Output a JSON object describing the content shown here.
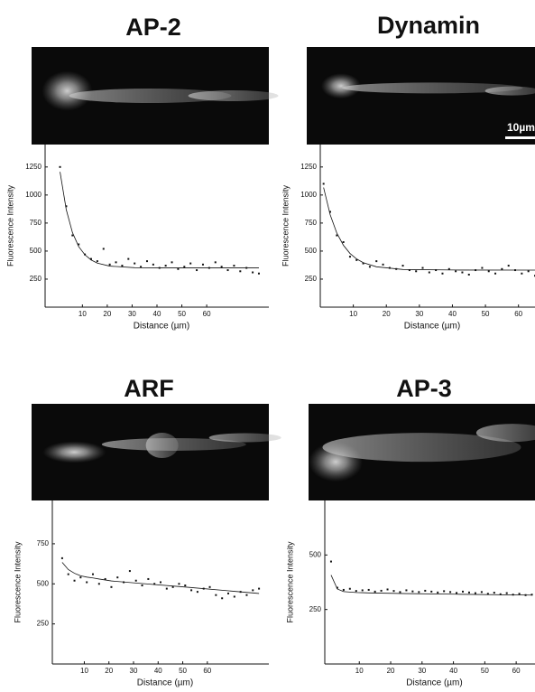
{
  "chart_data": [
    {
      "type": "scatter",
      "title": "AP-2",
      "xlabel": "Distance (µm)",
      "ylabel": "Fluorescence Intensity",
      "xlim": [
        -5,
        85
      ],
      "ylim": [
        0,
        1450
      ],
      "xticks": [
        10,
        20,
        30,
        40,
        50,
        60
      ],
      "yticks": [
        250,
        500,
        750,
        1000,
        1250
      ],
      "color": "#111111",
      "x": [
        1,
        3.5,
        6,
        8.5,
        11,
        13.5,
        16,
        18.5,
        21,
        23.5,
        26,
        28.5,
        31,
        33.5,
        36,
        38.5,
        41,
        43.5,
        46,
        48.5,
        51,
        53.5,
        56,
        58.5,
        61,
        63.5,
        66,
        68.5,
        71,
        73.5,
        76,
        78.5,
        81
      ],
      "values": [
        1250,
        900,
        640,
        560,
        470,
        430,
        410,
        520,
        380,
        400,
        370,
        430,
        390,
        360,
        410,
        380,
        350,
        370,
        400,
        340,
        360,
        390,
        330,
        380,
        350,
        400,
        360,
        330,
        370,
        320,
        350,
        310,
        300
      ],
      "fit": {
        "x": [
          1,
          3.5,
          6,
          8.5,
          11,
          13.5,
          16,
          21,
          31,
          51,
          81
        ],
        "values": [
          1207,
          870,
          665,
          540,
          467,
          421,
          393,
          366,
          352,
          350,
          350
        ]
      }
    },
    {
      "type": "scatter",
      "title": "Dynamin",
      "xlabel": "Distance (µm)",
      "ylabel": "Fluorescence Intensity",
      "scale_bar_label": "10µm",
      "xlim": [
        0,
        65
      ],
      "ylim": [
        0,
        1450
      ],
      "xticks": [
        10,
        20,
        30,
        40,
        50,
        60
      ],
      "yticks": [
        250,
        500,
        750,
        1000,
        1250
      ],
      "color": "#111111",
      "x": [
        1,
        3,
        5,
        7,
        9,
        11,
        13,
        15,
        17,
        19,
        21,
        23,
        25,
        27,
        29,
        31,
        33,
        35,
        37,
        39,
        41,
        43,
        45,
        47,
        49,
        51,
        53,
        55,
        57,
        59,
        61,
        63,
        65
      ],
      "values": [
        1100,
        850,
        640,
        580,
        450,
        420,
        390,
        360,
        410,
        380,
        350,
        340,
        370,
        330,
        320,
        350,
        310,
        330,
        300,
        340,
        320,
        310,
        290,
        330,
        350,
        320,
        300,
        340,
        370,
        330,
        300,
        320,
        280
      ],
      "fit": {
        "x": [
          1,
          3,
          5,
          7,
          9,
          11,
          13,
          17,
          25,
          41,
          65
        ],
        "values": [
          1067,
          824,
          661,
          552,
          479,
          430,
          397,
          360,
          336,
          331,
          330
        ]
      }
    },
    {
      "type": "scatter",
      "title": "ARF",
      "xlabel": "Distance (µm)",
      "ylabel": "Fluorescence Intensity",
      "xlim": [
        -3,
        85
      ],
      "ylim": [
        0,
        1020
      ],
      "xticks": [
        10,
        20,
        30,
        40,
        50,
        60
      ],
      "yticks": [
        250,
        500,
        750
      ],
      "color": "#111111",
      "x": [
        1,
        3.5,
        6,
        8.5,
        11,
        13.5,
        16,
        18.5,
        21,
        23.5,
        26,
        28.5,
        31,
        33.5,
        36,
        38.5,
        41,
        43.5,
        46,
        48.5,
        51,
        53.5,
        56,
        58.5,
        61,
        63.5,
        66,
        68.5,
        71,
        73.5,
        76,
        78.5,
        81
      ],
      "values": [
        660,
        560,
        520,
        540,
        510,
        560,
        500,
        530,
        480,
        540,
        510,
        580,
        520,
        490,
        530,
        500,
        510,
        470,
        480,
        500,
        490,
        460,
        450,
        470,
        480,
        430,
        410,
        440,
        420,
        450,
        430,
        460,
        470
      ],
      "fit": {
        "x": [
          1,
          3.5,
          6,
          8.5,
          11,
          13.5,
          16,
          21,
          31,
          51,
          81
        ],
        "values": [
          634,
          589,
          566,
          550,
          542,
          537,
          530,
          518,
          505,
          480,
          440
        ]
      }
    },
    {
      "type": "scatter",
      "title": "AP-3",
      "xlabel": "Distance (µm)",
      "ylabel": "Fluorescence Intensity",
      "xlim": [
        -1,
        66
      ],
      "ylim": [
        0,
        750
      ],
      "xticks": [
        10,
        20,
        30,
        40,
        50,
        60
      ],
      "yticks": [
        250,
        500
      ],
      "color": "#111111",
      "x": [
        1,
        3,
        5,
        7,
        9,
        11,
        13,
        15,
        17,
        19,
        21,
        23,
        25,
        27,
        29,
        31,
        33,
        35,
        37,
        39,
        41,
        43,
        45,
        47,
        49,
        51,
        53,
        55,
        57,
        59,
        61,
        63,
        65
      ],
      "values": [
        470,
        350,
        340,
        345,
        335,
        338,
        340,
        332,
        336,
        342,
        335,
        330,
        338,
        333,
        330,
        336,
        332,
        328,
        334,
        330,
        326,
        332,
        328,
        325,
        330,
        322,
        327,
        320,
        325,
        318,
        322,
        316,
        318
      ],
      "fit": {
        "x": [
          1,
          3,
          5,
          7,
          9,
          11,
          13,
          17,
          25,
          41,
          65
        ],
        "values": [
          408,
          344,
          332,
          330,
          328,
          327,
          326,
          325,
          323,
          320,
          316
        ]
      }
    }
  ]
}
